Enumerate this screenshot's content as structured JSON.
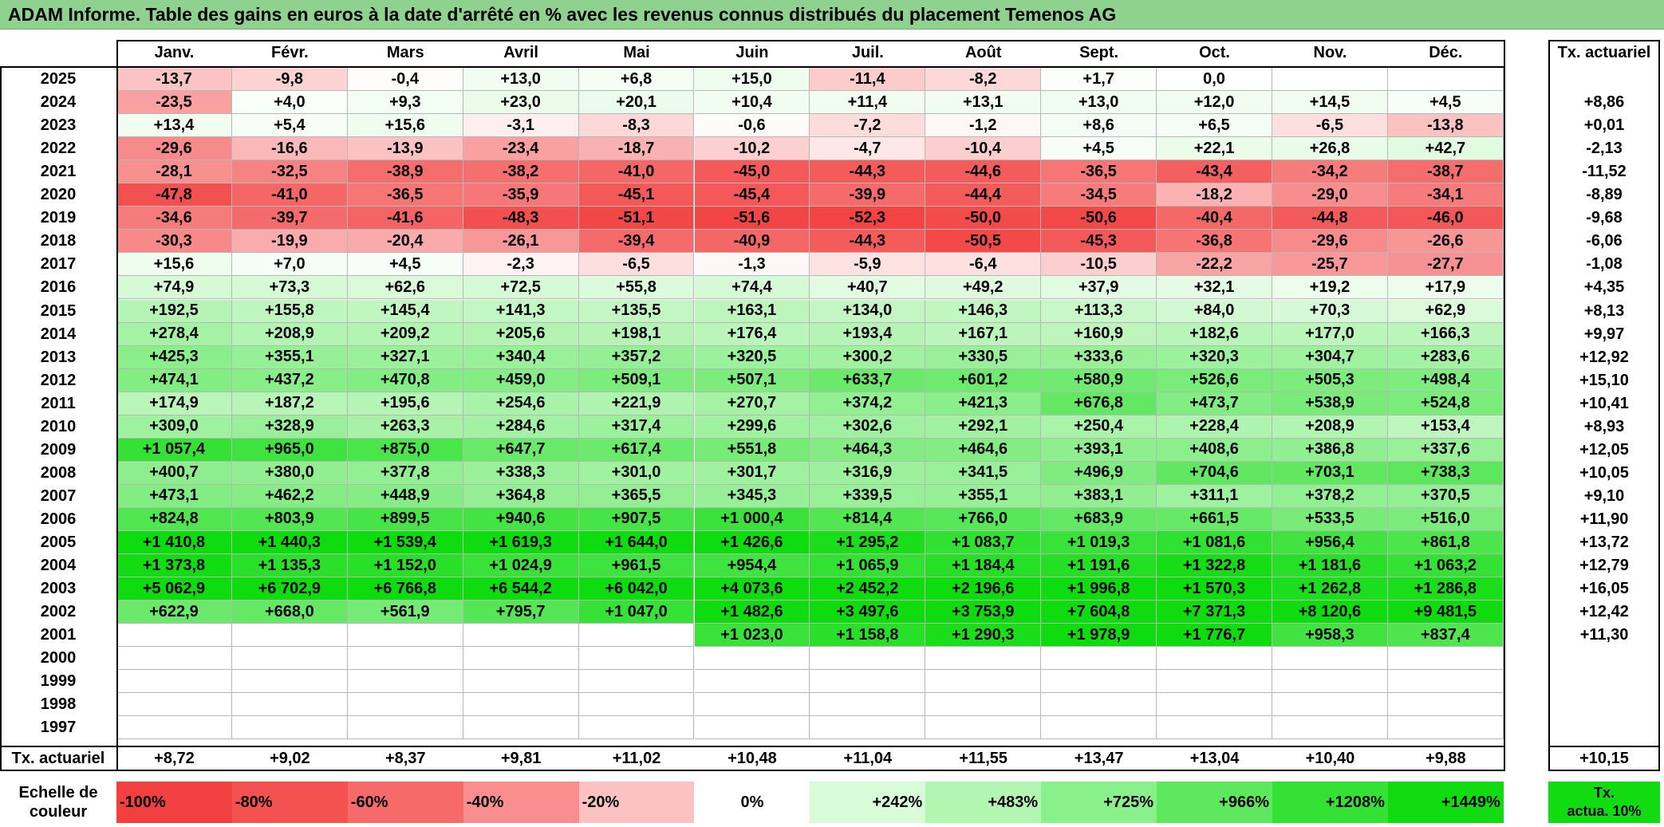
{
  "title": "ADAM Informe. Table des gains en euros à la date d'arrêté en % avec les revenus connus distribués du placement Temenos AG",
  "months": [
    "Janv.",
    "Févr.",
    "Mars",
    "Avril",
    "Mai",
    "Juin",
    "Juil.",
    "Août",
    "Sept.",
    "Oct.",
    "Nov.",
    "Déc."
  ],
  "tx_header": "Tx. actuariel",
  "rows": [
    {
      "year": "2025",
      "values": [
        "-13,7",
        "-9,8",
        "-0,4",
        "+13,0",
        "+6,8",
        "+15,0",
        "-11,4",
        "-8,2",
        "+1,7",
        "0,0",
        "",
        ""
      ],
      "tx": ""
    },
    {
      "year": "2024",
      "values": [
        "-23,5",
        "+4,0",
        "+9,3",
        "+23,0",
        "+20,1",
        "+10,4",
        "+11,4",
        "+13,1",
        "+13,0",
        "+12,0",
        "+14,5",
        "+4,5"
      ],
      "tx": "+8,86"
    },
    {
      "year": "2023",
      "values": [
        "+13,4",
        "+5,4",
        "+15,6",
        "-3,1",
        "-8,3",
        "-0,6",
        "-7,2",
        "-1,2",
        "+8,6",
        "+6,5",
        "-6,5",
        "-13,8"
      ],
      "tx": "+0,01"
    },
    {
      "year": "2022",
      "values": [
        "-29,6",
        "-16,6",
        "-13,9",
        "-23,4",
        "-18,7",
        "-10,2",
        "-4,7",
        "-10,4",
        "+4,5",
        "+22,1",
        "+26,8",
        "+42,7"
      ],
      "tx": "-2,13"
    },
    {
      "year": "2021",
      "values": [
        "-28,1",
        "-32,5",
        "-38,9",
        "-38,2",
        "-41,0",
        "-45,0",
        "-44,3",
        "-44,6",
        "-36,5",
        "-43,4",
        "-34,2",
        "-38,7"
      ],
      "tx": "-11,52"
    },
    {
      "year": "2020",
      "values": [
        "-47,8",
        "-41,0",
        "-36,5",
        "-35,9",
        "-45,1",
        "-45,4",
        "-39,9",
        "-44,4",
        "-34,5",
        "-18,2",
        "-29,0",
        "-34,1"
      ],
      "tx": "-8,89"
    },
    {
      "year": "2019",
      "values": [
        "-34,6",
        "-39,7",
        "-41,6",
        "-48,3",
        "-51,1",
        "-51,6",
        "-52,3",
        "-50,0",
        "-50,6",
        "-40,4",
        "-44,8",
        "-46,0"
      ],
      "tx": "-9,68"
    },
    {
      "year": "2018",
      "values": [
        "-30,3",
        "-19,9",
        "-20,4",
        "-26,1",
        "-39,4",
        "-40,9",
        "-44,3",
        "-50,5",
        "-45,3",
        "-36,8",
        "-29,6",
        "-26,6"
      ],
      "tx": "-6,06"
    },
    {
      "year": "2017",
      "values": [
        "+15,6",
        "+7,0",
        "+4,5",
        "-2,3",
        "-6,5",
        "-1,3",
        "-5,9",
        "-6,4",
        "-10,5",
        "-22,2",
        "-25,7",
        "-27,7"
      ],
      "tx": "-1,08"
    },
    {
      "year": "2016",
      "values": [
        "+74,9",
        "+73,3",
        "+62,6",
        "+72,5",
        "+55,8",
        "+74,4",
        "+40,7",
        "+49,2",
        "+37,9",
        "+32,1",
        "+19,2",
        "+17,9"
      ],
      "tx": "+4,35"
    },
    {
      "year": "2015",
      "values": [
        "+192,5",
        "+155,8",
        "+145,4",
        "+141,3",
        "+135,5",
        "+163,1",
        "+134,0",
        "+146,3",
        "+113,3",
        "+84,0",
        "+70,3",
        "+62,9"
      ],
      "tx": "+8,13"
    },
    {
      "year": "2014",
      "values": [
        "+278,4",
        "+208,9",
        "+209,2",
        "+205,6",
        "+198,1",
        "+176,4",
        "+193,4",
        "+167,1",
        "+160,9",
        "+182,6",
        "+177,0",
        "+166,3"
      ],
      "tx": "+9,97"
    },
    {
      "year": "2013",
      "values": [
        "+425,3",
        "+355,1",
        "+327,1",
        "+340,4",
        "+357,2",
        "+320,5",
        "+300,2",
        "+330,5",
        "+333,6",
        "+320,3",
        "+304,7",
        "+283,6"
      ],
      "tx": "+12,92"
    },
    {
      "year": "2012",
      "values": [
        "+474,1",
        "+437,2",
        "+470,8",
        "+459,0",
        "+509,1",
        "+507,1",
        "+633,7",
        "+601,2",
        "+580,9",
        "+526,6",
        "+505,3",
        "+498,4"
      ],
      "tx": "+15,10"
    },
    {
      "year": "2011",
      "values": [
        "+174,9",
        "+187,2",
        "+195,6",
        "+254,6",
        "+221,9",
        "+270,7",
        "+374,2",
        "+421,3",
        "+676,8",
        "+473,7",
        "+538,9",
        "+524,8"
      ],
      "tx": "+10,41"
    },
    {
      "year": "2010",
      "values": [
        "+309,0",
        "+328,9",
        "+263,3",
        "+284,6",
        "+317,4",
        "+299,6",
        "+302,6",
        "+292,1",
        "+250,4",
        "+228,4",
        "+208,9",
        "+153,4"
      ],
      "tx": "+8,93"
    },
    {
      "year": "2009",
      "values": [
        "+1 057,4",
        "+965,0",
        "+875,0",
        "+647,7",
        "+617,4",
        "+551,8",
        "+464,3",
        "+464,6",
        "+393,1",
        "+408,6",
        "+386,8",
        "+337,6"
      ],
      "tx": "+12,05"
    },
    {
      "year": "2008",
      "values": [
        "+400,7",
        "+380,0",
        "+377,8",
        "+338,3",
        "+301,0",
        "+301,7",
        "+316,9",
        "+341,5",
        "+496,9",
        "+704,6",
        "+703,1",
        "+738,3"
      ],
      "tx": "+10,05"
    },
    {
      "year": "2007",
      "values": [
        "+473,1",
        "+462,2",
        "+448,9",
        "+364,8",
        "+365,5",
        "+345,3",
        "+339,5",
        "+355,1",
        "+383,1",
        "+311,1",
        "+378,2",
        "+370,5"
      ],
      "tx": "+9,10"
    },
    {
      "year": "2006",
      "values": [
        "+824,8",
        "+803,9",
        "+899,5",
        "+940,6",
        "+907,5",
        "+1 000,4",
        "+814,4",
        "+766,0",
        "+683,9",
        "+661,5",
        "+533,5",
        "+516,0"
      ],
      "tx": "+11,90"
    },
    {
      "year": "2005",
      "values": [
        "+1 410,8",
        "+1 440,3",
        "+1 539,4",
        "+1 619,3",
        "+1 644,0",
        "+1 426,6",
        "+1 295,2",
        "+1 083,7",
        "+1 019,3",
        "+1 081,6",
        "+956,4",
        "+861,8"
      ],
      "tx": "+13,72"
    },
    {
      "year": "2004",
      "values": [
        "+1 373,8",
        "+1 135,3",
        "+1 152,0",
        "+1 024,9",
        "+961,5",
        "+954,4",
        "+1 065,9",
        "+1 184,4",
        "+1 191,6",
        "+1 322,8",
        "+1 181,6",
        "+1 063,2"
      ],
      "tx": "+12,79"
    },
    {
      "year": "2003",
      "values": [
        "+5 062,9",
        "+6 702,9",
        "+6 766,8",
        "+6 544,2",
        "+6 042,0",
        "+4 073,6",
        "+2 452,2",
        "+2 196,6",
        "+1 996,8",
        "+1 570,3",
        "+1 262,8",
        "+1 286,8"
      ],
      "tx": "+16,05"
    },
    {
      "year": "2002",
      "values": [
        "+622,9",
        "+668,0",
        "+561,9",
        "+795,7",
        "+1 047,0",
        "+1 482,6",
        "+3 497,6",
        "+3 753,9",
        "+7 604,8",
        "+7 371,3",
        "+8 120,6",
        "+9 481,5"
      ],
      "tx": "+12,42"
    },
    {
      "year": "2001",
      "values": [
        "",
        "",
        "",
        "",
        "",
        "+1 023,0",
        "+1 158,8",
        "+1 290,3",
        "+1 978,9",
        "+1 776,7",
        "+958,3",
        "+837,4"
      ],
      "tx": "+11,30"
    },
    {
      "year": "2000",
      "values": [
        "",
        "",
        "",
        "",
        "",
        "",
        "",
        "",
        "",
        "",
        "",
        ""
      ],
      "tx": ""
    },
    {
      "year": "1999",
      "values": [
        "",
        "",
        "",
        "",
        "",
        "",
        "",
        "",
        "",
        "",
        "",
        ""
      ],
      "tx": ""
    },
    {
      "year": "1998",
      "values": [
        "",
        "",
        "",
        "",
        "",
        "",
        "",
        "",
        "",
        "",
        "",
        ""
      ],
      "tx": ""
    },
    {
      "year": "1997",
      "values": [
        "",
        "",
        "",
        "",
        "",
        "",
        "",
        "",
        "",
        "",
        "",
        ""
      ],
      "tx": ""
    }
  ],
  "footer": {
    "label": "Tx. actuariel",
    "values": [
      "+8,72",
      "+9,02",
      "+8,37",
      "+9,81",
      "+11,02",
      "+10,48",
      "+11,04",
      "+11,55",
      "+13,47",
      "+13,04",
      "+10,40",
      "+9,88"
    ],
    "total": "+10,15"
  },
  "scale": {
    "label_line1": "Echelle de",
    "label_line2": "couleur",
    "steps": [
      {
        "label": "-100%",
        "color": "#f24040"
      },
      {
        "label": "-80%",
        "color": "#f45151"
      },
      {
        "label": "-60%",
        "color": "#f66a6a"
      },
      {
        "label": "-40%",
        "color": "#f98e8e"
      },
      {
        "label": "-20%",
        "color": "#fcc2c2"
      },
      {
        "label": "0%",
        "color": "#ffffff"
      },
      {
        "label": "+242%",
        "color": "#d8fbd8"
      },
      {
        "label": "+483%",
        "color": "#b2f6b2"
      },
      {
        "label": "+725%",
        "color": "#8af08a"
      },
      {
        "label": "+966%",
        "color": "#5de85d"
      },
      {
        "label": "+1208%",
        "color": "#33e233"
      },
      {
        "label": "+1449%",
        "color": "#11dc11"
      }
    ],
    "tx_line1": "Tx.",
    "tx_line2": "actua. 10%",
    "tx_color": "#11dc11"
  }
}
